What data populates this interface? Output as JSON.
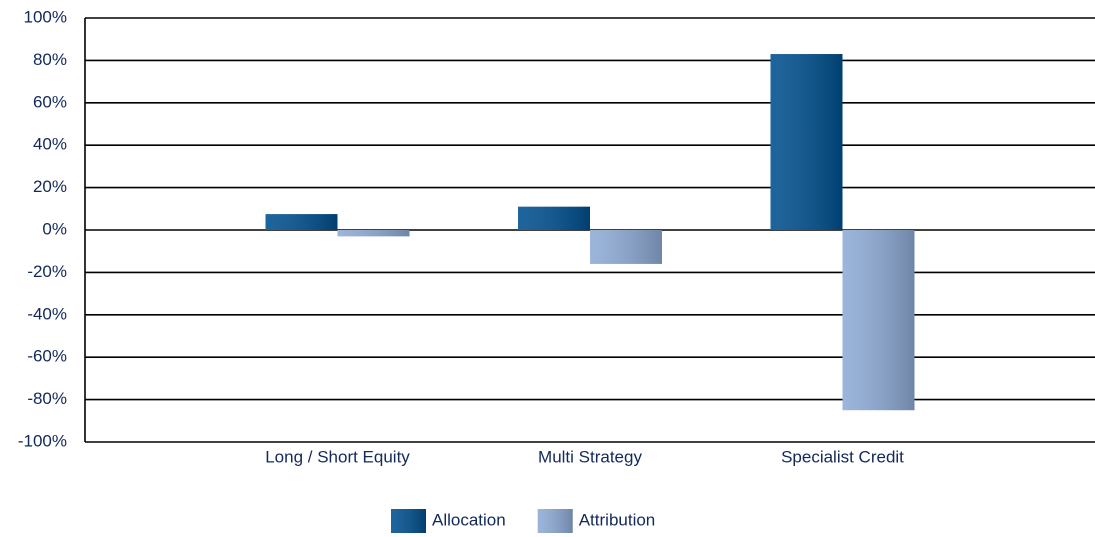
{
  "chart_data": {
    "type": "bar",
    "categories": [
      "Long / Short Equity",
      "Multi Strategy",
      "Specialist Credit"
    ],
    "series": [
      {
        "name": "Allocation",
        "color": "#00508f",
        "values": [
          7.5,
          11,
          83
        ]
      },
      {
        "name": "Attribution",
        "color": "#8eabd6",
        "values": [
          -3,
          -16,
          -85
        ]
      }
    ],
    "ylim": [
      -100,
      100
    ],
    "yticks": [
      {
        "value": -100,
        "label": "-100%"
      },
      {
        "value": -80,
        "label": "-80%"
      },
      {
        "value": -60,
        "label": "-60%"
      },
      {
        "value": -40,
        "label": "-40%"
      },
      {
        "value": -20,
        "label": "-20%"
      },
      {
        "value": 0,
        "label": "0%"
      },
      {
        "value": 20,
        "label": "20%"
      },
      {
        "value": 40,
        "label": "40%"
      },
      {
        "value": 60,
        "label": "60%"
      },
      {
        "value": 80,
        "label": "80%"
      },
      {
        "value": 100,
        "label": "100%"
      }
    ],
    "grid": true,
    "legend": "bottom"
  }
}
